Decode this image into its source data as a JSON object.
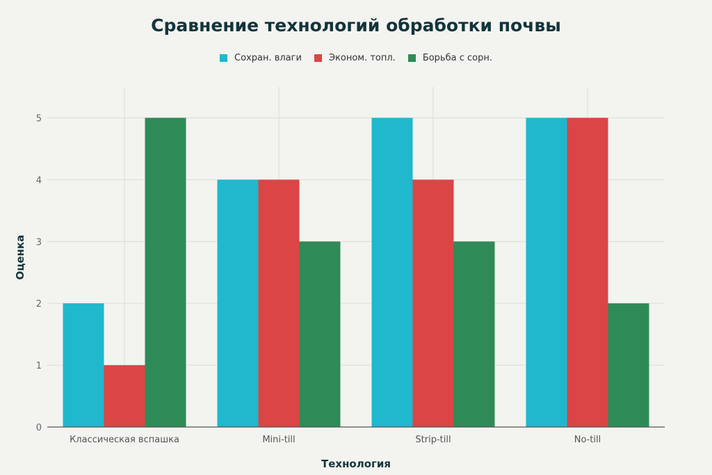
{
  "chart_data": {
    "type": "bar",
    "title": "Сравнение технологий обработки почвы",
    "xlabel": "Технология",
    "ylabel": "Оценка",
    "categories": [
      "Классическая вспашка",
      "Mini-till",
      "Strip-till",
      "No-till"
    ],
    "series": [
      {
        "name": "Сохран. влаги",
        "color": "#1fb8cd",
        "values": [
          2,
          4,
          5,
          5
        ]
      },
      {
        "name": "Эконом. топл.",
        "color": "#db4545",
        "values": [
          1,
          4,
          4,
          5
        ]
      },
      {
        "name": "Борьба с сорн.",
        "color": "#2e8b57",
        "values": [
          5,
          3,
          3,
          2
        ]
      }
    ],
    "yticks": [
      0,
      1,
      2,
      3,
      4,
      5
    ],
    "ylim": [
      0,
      5.5
    ],
    "grid": true,
    "legend": "top-center"
  }
}
